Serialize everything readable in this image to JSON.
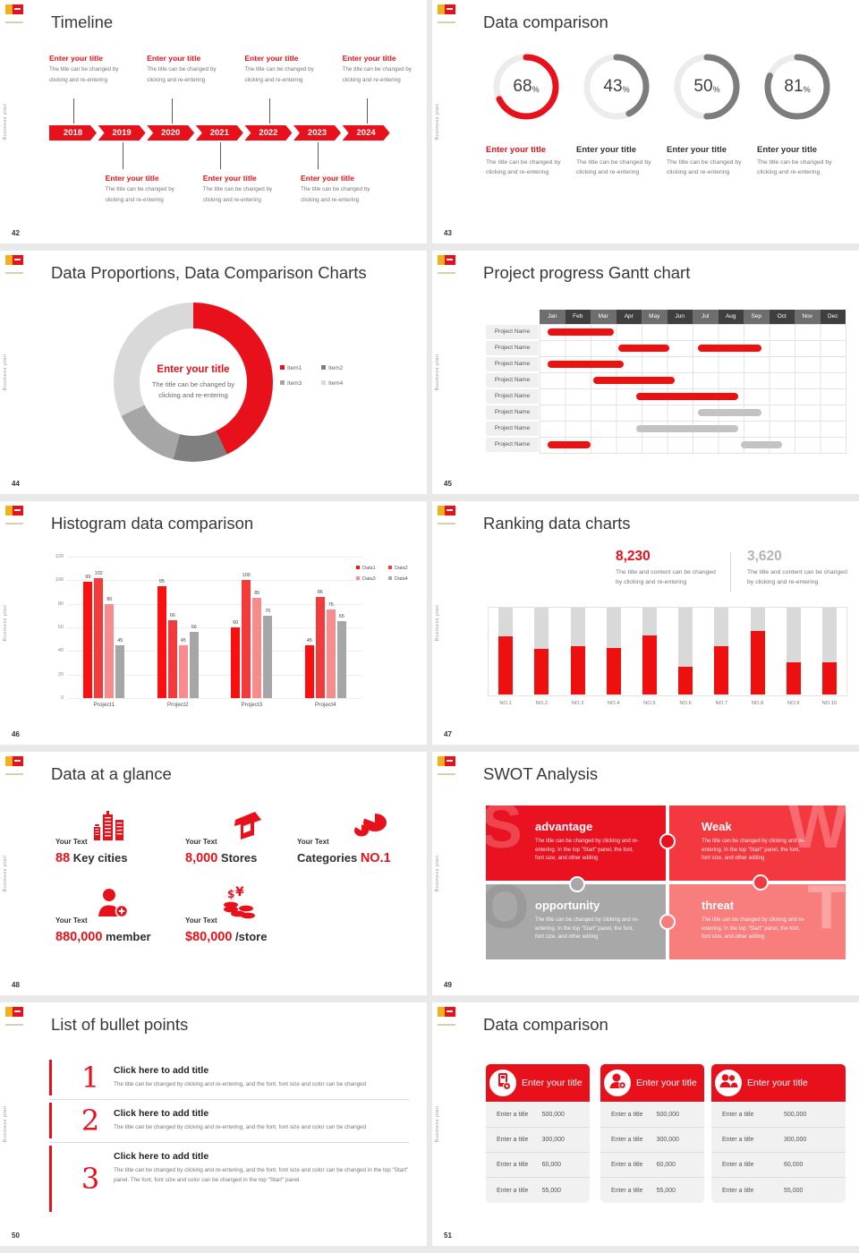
{
  "theme": {
    "red": "#e8111b",
    "chart_red": "#ee0f0f",
    "gray_bar": "#c3c3c3",
    "track": "#d9d9d9"
  },
  "common": {
    "watermark": "Business plan"
  },
  "slides": {
    "s42": {
      "number": "42",
      "title": "Timeline",
      "years": [
        "2018",
        "2019",
        "2020",
        "2021",
        "2022",
        "2023",
        "2024"
      ],
      "entry_title": "Enter your title",
      "entry_desc_line1": "The title can be changed by",
      "entry_desc_line2": "clicking and re-entering",
      "top_slots": [
        0,
        2,
        4,
        6
      ],
      "bottom_slots": [
        1,
        3,
        5
      ]
    },
    "s43": {
      "number": "43",
      "title": "Data comparison",
      "desc_line1": "The title can be changed by",
      "desc_line2": "clicking and re-entering",
      "items": [
        {
          "percent": 68,
          "label": "Enter your title",
          "arc_color": "#e8111b",
          "label_color": "#e8111b"
        },
        {
          "percent": 43,
          "label": "Enter your title",
          "arc_color": "#7d7d7d",
          "label_color": "#333333"
        },
        {
          "percent": 50,
          "label": "Enter your title",
          "arc_color": "#7d7d7d",
          "label_color": "#333333"
        },
        {
          "percent": 81,
          "label": "Enter your title",
          "arc_color": "#7d7d7d",
          "label_color": "#333333"
        }
      ]
    },
    "s44": {
      "number": "44",
      "title": "Data Proportions, Data Comparison Charts",
      "center_title": "Enter your title",
      "center_desc_line1": "The title can be changed by",
      "center_desc_line2": "clicking and re-entering",
      "chart": {
        "type": "pie",
        "segments": [
          {
            "label": "Item1",
            "value": 43,
            "color": "#e8111b"
          },
          {
            "label": "Item2",
            "value": 11,
            "color": "#7f7f7f"
          },
          {
            "label": "Item3",
            "value": 14,
            "color": "#a6a6a6"
          },
          {
            "label": "Item4",
            "value": 32,
            "color": "#d9d9d9"
          }
        ]
      }
    },
    "s45": {
      "number": "45",
      "title": "Project progress Gantt chart",
      "months": [
        "Jan",
        "Feb",
        "Mar",
        "Apr",
        "May",
        "Jun",
        "Jul",
        "Aug",
        "Sep",
        "Oct",
        "Nov",
        "Dec"
      ],
      "row_label": "Project Name",
      "row_count": 8,
      "bars": [
        {
          "row": 0,
          "start": 0.3,
          "end": 2.9,
          "color": "#ee0f0f"
        },
        {
          "row": 1,
          "start": 3.1,
          "end": 5.1,
          "color": "#ee0f0f"
        },
        {
          "row": 1,
          "start": 6.2,
          "end": 8.7,
          "color": "#ee0f0f"
        },
        {
          "row": 2,
          "start": 0.3,
          "end": 3.3,
          "color": "#ee0f0f"
        },
        {
          "row": 3,
          "start": 2.1,
          "end": 5.3,
          "color": "#ee0f0f"
        },
        {
          "row": 4,
          "start": 3.8,
          "end": 7.8,
          "color": "#ee0f0f"
        },
        {
          "row": 5,
          "start": 6.2,
          "end": 8.7,
          "color": "#c3c3c3"
        },
        {
          "row": 6,
          "start": 3.8,
          "end": 7.8,
          "color": "#c3c3c3"
        },
        {
          "row": 7,
          "start": 0.3,
          "end": 2.0,
          "color": "#ee0f0f"
        },
        {
          "row": 7,
          "start": 7.9,
          "end": 9.5,
          "color": "#c3c3c3"
        }
      ]
    },
    "s46": {
      "number": "46",
      "title": "Histogram data comparison",
      "chart": {
        "type": "bar",
        "categories": [
          "Project1",
          "Project2",
          "Project3",
          "Project4"
        ],
        "series": [
          {
            "name": "Data1",
            "color": "#fb0f0f",
            "values": [
              99,
              95,
              60,
              45
            ]
          },
          {
            "name": "Data2",
            "color": "#f23c3c",
            "values": [
              102,
              66,
              100,
              86
            ]
          },
          {
            "name": "Data3",
            "color": "#f88b8b",
            "values": [
              80,
              45,
              85,
              75
            ]
          },
          {
            "name": "Data4",
            "color": "#a6a6a6",
            "values": [
              45,
              56,
              70,
              65
            ]
          }
        ],
        "y_ticks": [
          0,
          20,
          40,
          60,
          80,
          100,
          120
        ],
        "ylim": [
          0,
          120
        ]
      }
    },
    "s47": {
      "number": "47",
      "title": "Ranking data charts",
      "stats": [
        {
          "value": "8,230",
          "desc_line1": "The title and content can be changed",
          "desc_line2": "by clicking and re-entering",
          "color": "#e8111b"
        },
        {
          "value": "3,620",
          "desc_line1": "The title and content can be changed",
          "desc_line2": "by clicking and re-entering",
          "color": "#b5b5b5"
        }
      ],
      "chart": {
        "type": "bar",
        "categories": [
          "NO.1",
          "NO.2",
          "NO.3",
          "NO.4",
          "NO.5",
          "NO.6",
          "NO.7",
          "NO.8",
          "NO.9",
          "NO.10"
        ],
        "fill_percent": [
          67,
          53,
          56,
          54,
          68,
          32,
          56,
          73,
          37,
          37
        ],
        "bar_color": "#ee0f0f",
        "track_color": "#d9d9d9"
      }
    },
    "s48": {
      "number": "48",
      "title": "Data at a glance",
      "items": [
        {
          "label": "Your Text",
          "icon": "city",
          "parts": [
            {
              "text": "88",
              "red": true
            },
            {
              "text": " Key cities",
              "red": false
            }
          ]
        },
        {
          "label": "Your Text",
          "icon": "store",
          "parts": [
            {
              "text": "8,000",
              "red": true
            },
            {
              "text": " Stores",
              "red": false
            }
          ]
        },
        {
          "label": "Your Text",
          "icon": "pie",
          "parts": [
            {
              "text": "Categories ",
              "red": false
            },
            {
              "text": "NO.1",
              "red": true
            }
          ]
        },
        {
          "label": "Your Text",
          "icon": "member",
          "parts": [
            {
              "text": "880,000",
              "red": true
            },
            {
              "text": " member",
              "red": false
            }
          ]
        },
        {
          "label": "Your Text",
          "icon": "coins",
          "parts": [
            {
              "text": "$80,000",
              "red": true
            },
            {
              "text": " /store",
              "red": false
            }
          ]
        }
      ]
    },
    "s49": {
      "number": "49",
      "title": "SWOT Analysis",
      "body": "The title can be changed by clicking and re-entering. In the top \"Start\" panel, the font, font size, and other editing",
      "quads": [
        {
          "letter": "S",
          "title": "advantage",
          "color": "#ea1220"
        },
        {
          "letter": "W",
          "title": "Weak",
          "color": "#f4383f"
        },
        {
          "letter": "O",
          "title": "opportunity",
          "color": "#a8a8a8"
        },
        {
          "letter": "T",
          "title": "threat",
          "color": "#f87d7d"
        }
      ]
    },
    "s50": {
      "number": "50",
      "title": "List of bullet points",
      "items": [
        {
          "num": "1",
          "title": "Click here to add title",
          "body": "The title can be changed by clicking and re-entering, and the font, font size and color can be changed"
        },
        {
          "num": "2",
          "title": "Click here to add title",
          "body": "The title can be changed by clicking and re-entering, and the font, font size and color can be changed"
        },
        {
          "num": "3",
          "title": "Click here to add title",
          "body": "The title can be changed by clicking and re-entering, and the font, font size and color can be changed in the top \"Start\" panel. The font, font size and color can be changed in the top \"Start\" panel."
        }
      ]
    },
    "s51": {
      "number": "51",
      "title": "Data comparison",
      "cards": [
        {
          "icon": "device-add",
          "header": "Enter your title",
          "rows": [
            {
              "label": "Enter a title",
              "value": "500,000"
            },
            {
              "label": "Enter a title",
              "value": "300,000"
            },
            {
              "label": "Enter a title",
              "value": "60,000"
            },
            {
              "label": "Enter a title",
              "value": "55,000"
            }
          ]
        },
        {
          "icon": "person-add",
          "header": "Enter your title",
          "rows": [
            {
              "label": "Enter a title",
              "value": "500,000"
            },
            {
              "label": "Enter a title",
              "value": "300,000"
            },
            {
              "label": "Enter a title",
              "value": "60,000"
            },
            {
              "label": "Enter a title",
              "value": "55,000"
            }
          ]
        },
        {
          "icon": "people",
          "header": "Enter your title",
          "rows": [
            {
              "label": "Enter a title",
              "value": "500,000"
            },
            {
              "label": "Enter a title",
              "value": "300,000"
            },
            {
              "label": "Enter a title",
              "value": "60,000"
            },
            {
              "label": "Enter a title",
              "value": "55,000"
            }
          ]
        }
      ]
    }
  }
}
